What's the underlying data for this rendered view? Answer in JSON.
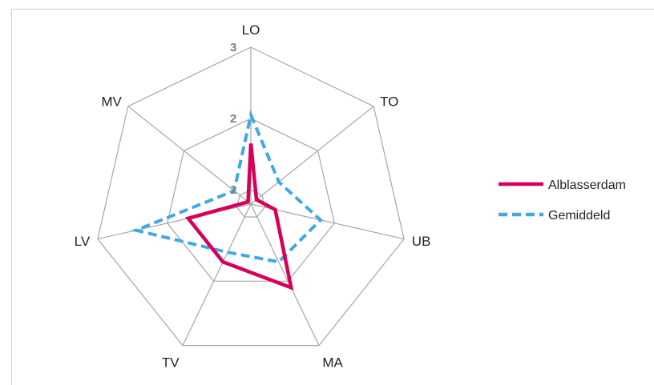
{
  "chart_data": {
    "type": "radar",
    "categories": [
      "LO",
      "TO",
      "UB",
      "MA",
      "TV",
      "LV",
      "MV"
    ],
    "axis_ticks": [
      "1",
      "2",
      "3"
    ],
    "rmin": 0.8,
    "rmax": 3,
    "series": [
      {
        "name": "Alblasserdam",
        "values": [
          1.65,
          0.9,
          1.15,
          2.1,
          1.7,
          1.7,
          0.85
        ],
        "color": "#d6005b",
        "style": "solid"
      },
      {
        "name": "Gemiddeld",
        "values": [
          2.05,
          1.3,
          1.8,
          1.7,
          1.55,
          2.45,
          1.1
        ],
        "color": "#3fa9e5",
        "style": "dashed"
      }
    ],
    "legend_position": "right",
    "grid_color": "#a6a6a6"
  }
}
